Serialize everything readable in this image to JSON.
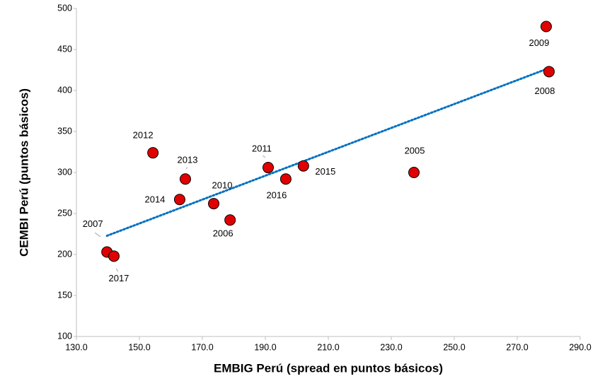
{
  "chart_data": {
    "type": "scatter",
    "x_label": "EMBIG Perú (spread en puntos básicos)",
    "y_label": "CEMBI Perú (puntos básicos)",
    "point_labels": [
      "2005",
      "2006",
      "2007",
      "2008",
      "2009",
      "2010",
      "2011",
      "2012",
      "2013",
      "2014",
      "2015",
      "2016",
      "2017"
    ],
    "x": [
      237.2,
      178.8,
      139.7,
      280.1,
      279.2,
      173.6,
      190.9,
      154.3,
      164.6,
      162.8,
      202.1,
      196.5,
      141.9
    ],
    "y": [
      300,
      242,
      203,
      423,
      478,
      262,
      306,
      324,
      292,
      267,
      308,
      292,
      198
    ],
    "color": "#e00000",
    "trendline": true,
    "trendline_color": "#0070c0",
    "xlim": [
      130,
      290
    ],
    "xticks": [
      {
        "value": 130,
        "label": "130.0"
      },
      {
        "value": 150,
        "label": "150.0"
      },
      {
        "value": 170,
        "label": "170.0"
      },
      {
        "value": 190,
        "label": "190.0"
      },
      {
        "value": 210,
        "label": "210.0"
      },
      {
        "value": 230,
        "label": "230.0"
      },
      {
        "value": 250,
        "label": "250.0"
      },
      {
        "value": 270,
        "label": "270.0"
      },
      {
        "value": 290,
        "label": "290.0"
      }
    ],
    "ylim": [
      100,
      500
    ],
    "yticks": [
      100,
      150,
      200,
      250,
      300,
      350,
      400,
      450,
      500
    ]
  }
}
